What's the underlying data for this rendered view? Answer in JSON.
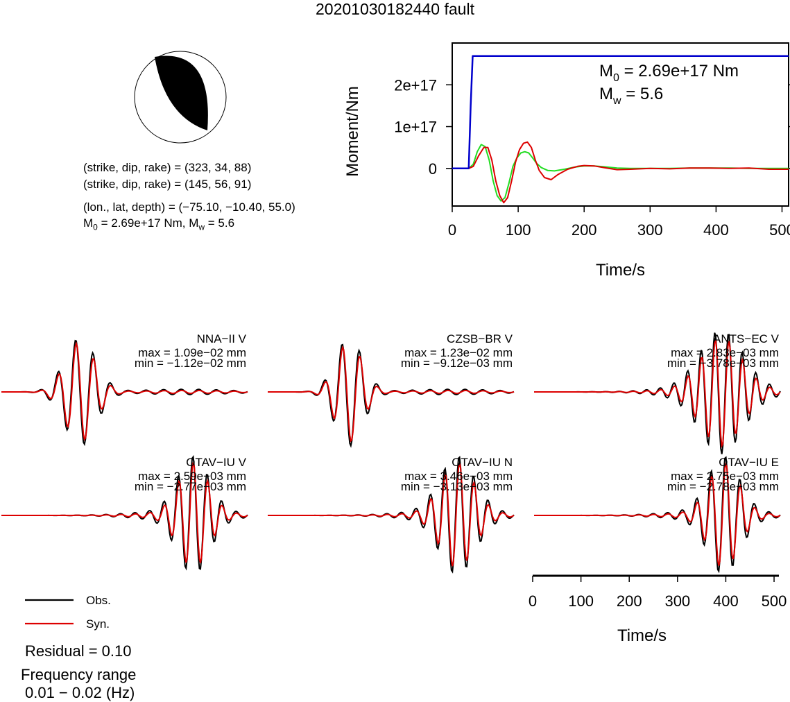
{
  "title": "20201030182440 fault",
  "mechanism": {
    "plane1": "(strike, dip, rake) = (323, 34, 88)",
    "plane2": "(strike, dip, rake) = (145, 56, 91)",
    "location": "(lon., lat, depth) = (−75.10, −10.40, 55.0)",
    "m0_prefix": "M",
    "m0_sub": "0",
    "m0_rest": " = 2.69e+17 Nm, M",
    "mw_sub": "w",
    "mw_rest": " = 5.6"
  },
  "moment_chart": {
    "type": "line",
    "ylabel": "Moment/Nm",
    "xlabel": "Time/s",
    "xlim": [
      0,
      510
    ],
    "ylim": [
      -9e+16,
      3e+17
    ],
    "xticks": [
      0,
      100,
      200,
      300,
      400,
      500
    ],
    "yticks": [
      {
        "value": 0,
        "label": "0"
      },
      {
        "value": 1e+17,
        "label": "1e+17"
      },
      {
        "value": 2e+17,
        "label": "2e+17"
      }
    ],
    "annotation_m0": {
      "base": "M",
      "sub": "0",
      "rest": " = 2.69e+17 Nm"
    },
    "annotation_mw": {
      "base": "M",
      "sub": "w",
      "rest": " = 5.6"
    },
    "colors": {
      "cumulative": "#0000cc",
      "rate_red": "#dd0000",
      "rate_green": "#22dd22"
    },
    "cumulative": {
      "t": [
        0,
        25,
        28,
        31,
        510
      ],
      "v": [
        0,
        0,
        1.5e+17,
        2.69e+17,
        2.69e+17
      ]
    },
    "rate_red": {
      "t": [
        0,
        25,
        32,
        40,
        48,
        54,
        60,
        66,
        72,
        78,
        84,
        90,
        96,
        102,
        108,
        114,
        120,
        126,
        132,
        140,
        150,
        160,
        175,
        190,
        200,
        215,
        230,
        250,
        270,
        300,
        330,
        360,
        390,
        420,
        450,
        480,
        510
      ],
      "v": [
        0,
        0,
        5000000000000000.0,
        3e+16,
        5e+16,
        5e+16,
        2e+16,
        -3e+16,
        -6.5e+16,
        -8.2e+16,
        -7e+16,
        -3e+16,
        1.5e+16,
        4.5e+16,
        6e+16,
        6.3e+16,
        5e+16,
        2e+16,
        -5000000000000000.0,
        -2.2e+16,
        -2.7e+16,
        -1.5e+16,
        -2000000000000000.0,
        5000000000000000.0,
        7000000000000000.0,
        6000000000000000.0,
        2000000000000000.0,
        -3000000000000000.0,
        -2000000000000000.0,
        0,
        -1000000000000000.0,
        1000000000000000.0,
        1000000000000000.0,
        0,
        1000000000000000.0,
        -2000000000000000.0,
        -2000000000000000.0
      ]
    },
    "rate_green": {
      "t": [
        0,
        25,
        32,
        38,
        44,
        50,
        56,
        62,
        68,
        74,
        80,
        86,
        92,
        98,
        104,
        110,
        116,
        122,
        128,
        135,
        145,
        155,
        170,
        185,
        200,
        215,
        230,
        250,
        270,
        300,
        330,
        360,
        390,
        420,
        450,
        480,
        510
      ],
      "v": [
        0,
        0,
        1e+16,
        4e+16,
        5.7e+16,
        5.2e+16,
        2e+16,
        -3e+16,
        -6.5e+16,
        -7.8e+16,
        -7e+16,
        -3.5e+16,
        5000000000000000.0,
        2.5e+16,
        3.7e+16,
        4e+16,
        3.7e+16,
        2.5e+16,
        1.2e+16,
        2000000000000000.0,
        -5000000000000000.0,
        -6000000000000000.0,
        -2000000000000000.0,
        3000000000000000.0,
        6000000000000000.0,
        6000000000000000.0,
        4000000000000000.0,
        1000000000000000.0,
        0,
        0,
        0,
        1000000000000000.0,
        1000000000000000.0,
        1000000000000000.0,
        0,
        0,
        0
      ]
    }
  },
  "waveforms": {
    "colors": {
      "obs": "#000000",
      "syn": "#dd0000"
    },
    "time_axis": {
      "label": "Time/s",
      "xticks": [
        0,
        100,
        200,
        300,
        400,
        500
      ],
      "xlim": [
        0,
        510
      ]
    },
    "panels": [
      {
        "station": "NNA−II V",
        "max": "max = 1.09e−02 mm",
        "min": "min = −1.12e−02 mm"
      },
      {
        "station": "CZSB−BR V",
        "max": "max = 1.23e−02 mm",
        "min": "min = −9.12e−03 mm"
      },
      {
        "station": "ANTS−EC V",
        "max": "max = 2.83e−03 mm",
        "min": "min = −3.78e−03 mm"
      },
      {
        "station": "OTAV−IU V",
        "max": "max = 2.59e−03 mm",
        "min": "min = −2.77e−03 mm"
      },
      {
        "station": "OTAV−IU N",
        "max": "max = 3.46e−03 mm",
        "min": "min = −3.13e−03 mm"
      },
      {
        "station": "OTAV−IU E",
        "max": "max = 2.75e−03 mm",
        "min": "min = −2.78e−03 mm"
      }
    ]
  },
  "legend": {
    "obs": "Obs.",
    "syn": "Syn."
  },
  "residual": "Residual = 0.10",
  "frequency_label": "Frequency range",
  "frequency_value": "0.01 − 0.02 (Hz)"
}
